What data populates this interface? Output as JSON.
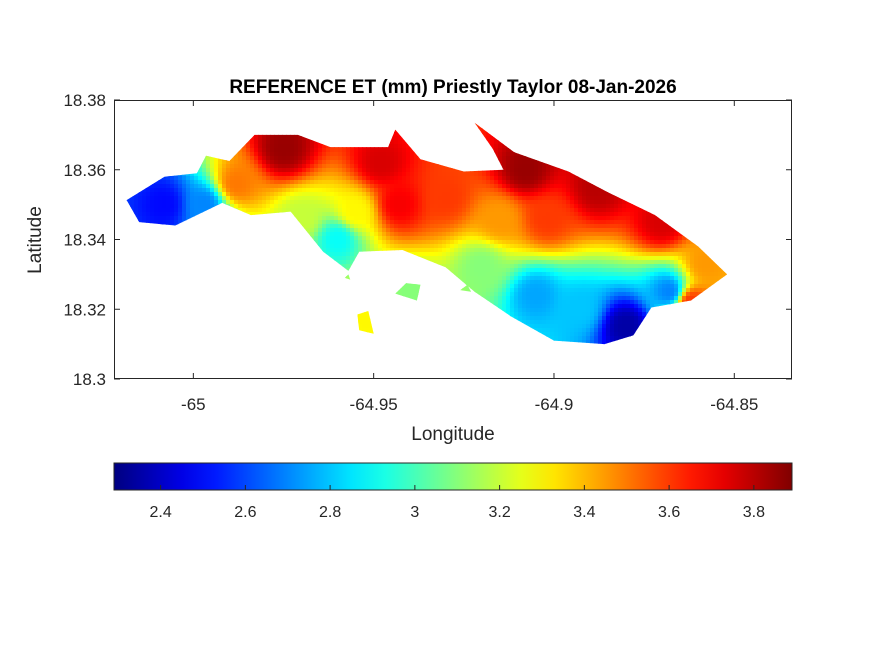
{
  "chart_data": {
    "type": "heatmap",
    "title": "REFERENCE ET (mm) Priestly Taylor 08-Jan-2026",
    "xlabel": "Longitude",
    "ylabel": "Latitude",
    "xlim": [
      -65.022,
      -64.834
    ],
    "ylim": [
      18.3,
      18.38
    ],
    "xticks": [
      -65,
      -64.95,
      -64.9,
      -64.85
    ],
    "xtick_labels": [
      "-65",
      "-64.95",
      "-64.9",
      "-64.85"
    ],
    "yticks": [
      18.3,
      18.32,
      18.34,
      18.36,
      18.38
    ],
    "ytick_labels": [
      "18.3",
      "18.32",
      "18.34",
      "18.36",
      "18.38"
    ],
    "grid": false,
    "colormap": "jet",
    "colorbar": {
      "location": "bottom",
      "range": [
        2.29,
        3.89
      ],
      "ticks": [
        2.4,
        2.6,
        2.8,
        3,
        3.2,
        3.4,
        3.6,
        3.8
      ],
      "tick_labels": [
        "2.4",
        "2.6",
        "2.8",
        "3",
        "3.2",
        "3.4",
        "3.6",
        "3.8"
      ]
    },
    "land_outline": [
      [
        -65.0185,
        18.3513
      ],
      [
        -65.008,
        18.358
      ],
      [
        -64.999,
        18.359
      ],
      [
        -64.9965,
        18.364
      ],
      [
        -64.99,
        18.3625
      ],
      [
        -64.983,
        18.37
      ],
      [
        -64.971,
        18.37
      ],
      [
        -64.962,
        18.3665
      ],
      [
        -64.946,
        18.3665
      ],
      [
        -64.944,
        18.3715
      ],
      [
        -64.937,
        18.363
      ],
      [
        -64.925,
        18.3595
      ],
      [
        -64.914,
        18.36
      ],
      [
        -64.917,
        18.366
      ],
      [
        -64.922,
        18.3735
      ],
      [
        -64.911,
        18.365
      ],
      [
        -64.896,
        18.3595
      ],
      [
        -64.885,
        18.3535
      ],
      [
        -64.872,
        18.347
      ],
      [
        -64.86,
        18.338
      ],
      [
        -64.852,
        18.33
      ],
      [
        -64.862,
        18.3225
      ],
      [
        -64.873,
        18.3205
      ],
      [
        -64.878,
        18.3125
      ],
      [
        -64.886,
        18.31
      ],
      [
        -64.9,
        18.311
      ],
      [
        -64.912,
        18.318
      ],
      [
        -64.922,
        18.325
      ],
      [
        -64.93,
        18.332
      ],
      [
        -64.942,
        18.337
      ],
      [
        -64.954,
        18.3365
      ],
      [
        -64.957,
        18.331
      ],
      [
        -64.964,
        18.3365
      ],
      [
        -64.973,
        18.348
      ],
      [
        -64.984,
        18.347
      ],
      [
        -64.992,
        18.3505
      ],
      [
        -65.005,
        18.344
      ],
      [
        -65.015,
        18.345
      ]
    ],
    "islets": [
      [
        [
          -64.954,
          18.314
        ],
        [
          -64.95,
          18.313
        ],
        [
          -64.9515,
          18.3195
        ],
        [
          -64.9545,
          18.3185
        ]
      ],
      [
        [
          -64.944,
          18.3245
        ],
        [
          -64.938,
          18.3225
        ],
        [
          -64.937,
          18.327
        ],
        [
          -64.941,
          18.3275
        ]
      ],
      [
        [
          -64.926,
          18.3255
        ],
        [
          -64.923,
          18.325
        ],
        [
          -64.924,
          18.327
        ]
      ],
      [
        [
          -64.958,
          18.329
        ],
        [
          -64.9565,
          18.3285
        ],
        [
          -64.957,
          18.33
        ]
      ]
    ],
    "value_centers": [
      {
        "lon": -65.008,
        "lat": 18.35,
        "value": 2.5
      },
      {
        "lon": -64.997,
        "lat": 18.35,
        "value": 2.7
      },
      {
        "lon": -64.88,
        "lat": 18.315,
        "value": 2.35
      },
      {
        "lon": -64.905,
        "lat": 18.324,
        "value": 2.75
      },
      {
        "lon": -64.893,
        "lat": 18.32,
        "value": 2.8
      },
      {
        "lon": -64.868,
        "lat": 18.325,
        "value": 2.7
      },
      {
        "lon": -64.96,
        "lat": 18.34,
        "value": 2.9
      },
      {
        "lon": -64.97,
        "lat": 18.346,
        "value": 3.2
      },
      {
        "lon": -64.955,
        "lat": 18.348,
        "value": 3.3
      },
      {
        "lon": -64.988,
        "lat": 18.356,
        "value": 3.5
      },
      {
        "lon": -64.943,
        "lat": 18.35,
        "value": 3.7
      },
      {
        "lon": -64.93,
        "lat": 18.352,
        "value": 3.6
      },
      {
        "lon": -64.915,
        "lat": 18.346,
        "value": 3.45
      },
      {
        "lon": -64.902,
        "lat": 18.346,
        "value": 3.6
      },
      {
        "lon": -64.975,
        "lat": 18.366,
        "value": 3.85
      },
      {
        "lon": -64.948,
        "lat": 18.362,
        "value": 3.75
      },
      {
        "lon": -64.908,
        "lat": 18.36,
        "value": 3.85
      },
      {
        "lon": -64.888,
        "lat": 18.355,
        "value": 3.8
      },
      {
        "lon": -64.87,
        "lat": 18.345,
        "value": 3.75
      },
      {
        "lon": -64.858,
        "lat": 18.333,
        "value": 3.45
      },
      {
        "lon": -64.862,
        "lat": 18.322,
        "value": 3.6
      },
      {
        "lon": -64.92,
        "lat": 18.332,
        "value": 3.1
      },
      {
        "lon": -64.952,
        "lat": 18.318,
        "value": 3.3
      },
      {
        "lon": -64.94,
        "lat": 18.325,
        "value": 3.1
      }
    ]
  }
}
